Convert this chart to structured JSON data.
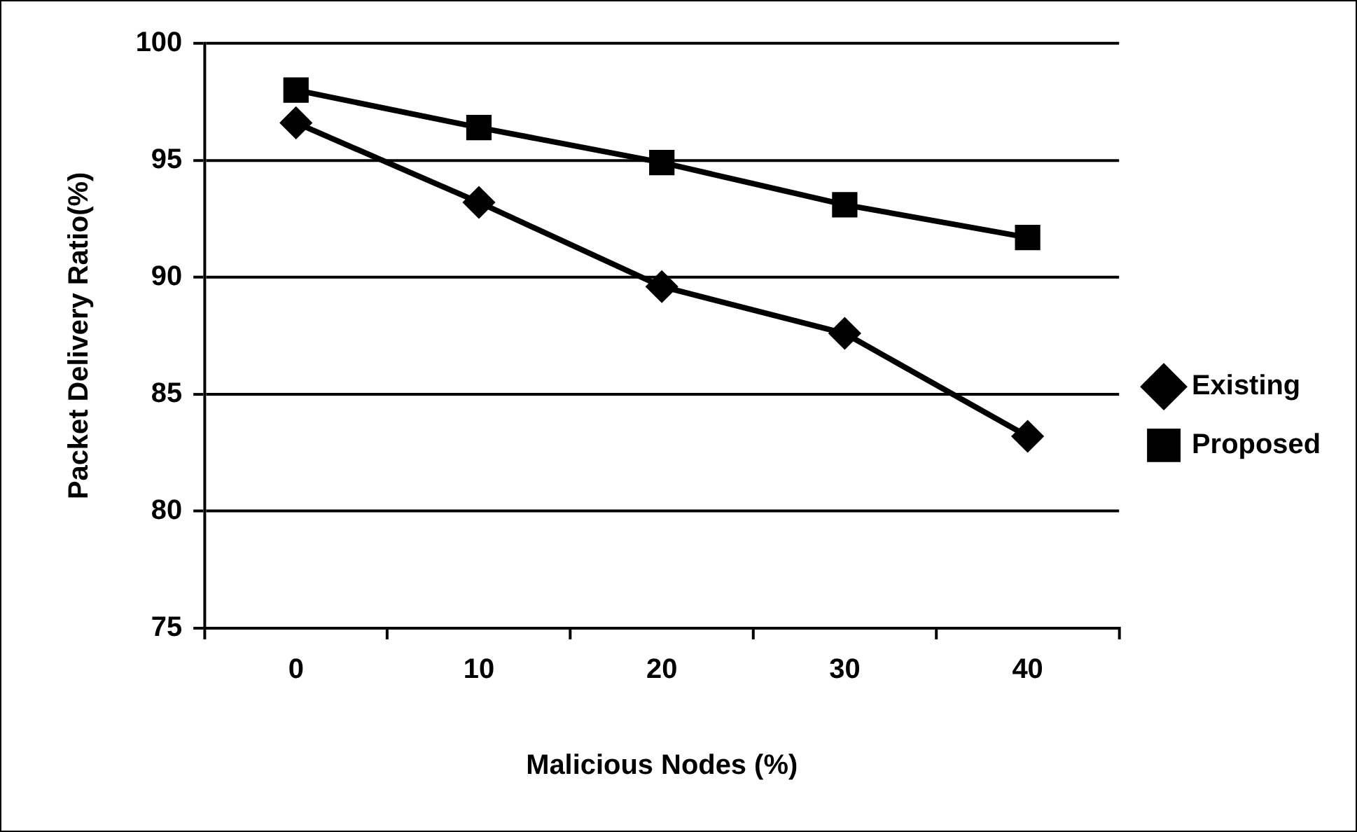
{
  "chart_data": {
    "type": "line",
    "xlabel": "Malicious Nodes (%)",
    "ylabel": "Packet Delivery Ratio(%)",
    "categories": [
      "0",
      "10",
      "20",
      "30",
      "40"
    ],
    "series": [
      {
        "name": "Existing",
        "color": "#000000",
        "marker": "diamond",
        "values": [
          96.6,
          93.2,
          89.6,
          87.6,
          83.2
        ]
      },
      {
        "name": "Proposed",
        "color": "#000000",
        "marker": "square",
        "values": [
          98.0,
          96.4,
          94.9,
          93.1,
          91.7
        ]
      }
    ],
    "ylim": [
      75,
      100
    ],
    "yticks": [
      75,
      80,
      85,
      90,
      95,
      100
    ],
    "grid": "y",
    "legend": "right",
    "line_style": "solid"
  }
}
